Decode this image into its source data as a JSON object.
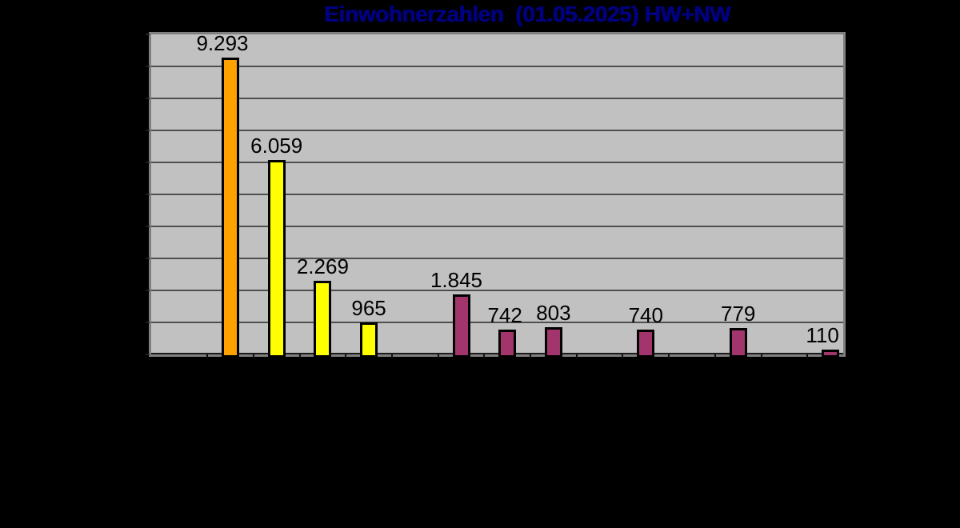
{
  "title": {
    "text": "Einwohnerzahlen  (01.05.2025) HW+NW",
    "color": "#000080"
  },
  "chart_data": {
    "type": "bar",
    "title": "Einwohnerzahlen  (01.05.2025) HW+NW",
    "xlabel": "",
    "ylabel": "",
    "ylim": [
      0,
      10000
    ],
    "gridline_step": 1000,
    "grid": true,
    "legend": "none",
    "x_axis_labels_visible": false,
    "y_axis_labels_visible": false,
    "plot_bg": "#C1C1C1",
    "plot_border": "#7F7F7F",
    "gridline_color": "#4F4F4F",
    "axis_line_color": "#1A1A1A",
    "bar_outline": "#000000",
    "page_bg": "#000000",
    "label_color": "#000000",
    "bars": [
      {
        "label": "9.293",
        "value": 9293,
        "color": "#FFA200",
        "slot": 0
      },
      {
        "label": "6.059",
        "value": 6059,
        "color": "#FFFF00",
        "slot": 1
      },
      {
        "label": "2.269",
        "value": 2269,
        "color": "#FFFF00",
        "slot": 2
      },
      {
        "label": "965",
        "value": 965,
        "color": "#FFFF00",
        "slot": 3
      },
      {
        "label": "1.845",
        "value": 1845,
        "color": "#A2356B",
        "slot": 5
      },
      {
        "label": "742",
        "value": 742,
        "color": "#A2356B",
        "slot": 6
      },
      {
        "label": "803",
        "value": 803,
        "color": "#A2356B",
        "slot": 7
      },
      {
        "label": "740",
        "value": 740,
        "color": "#A2356B",
        "slot": 9
      },
      {
        "label": "779",
        "value": 779,
        "color": "#A2356B",
        "slot": 11
      },
      {
        "label": "110",
        "value": 110,
        "color": "#A2356B",
        "slot": 13
      }
    ]
  }
}
